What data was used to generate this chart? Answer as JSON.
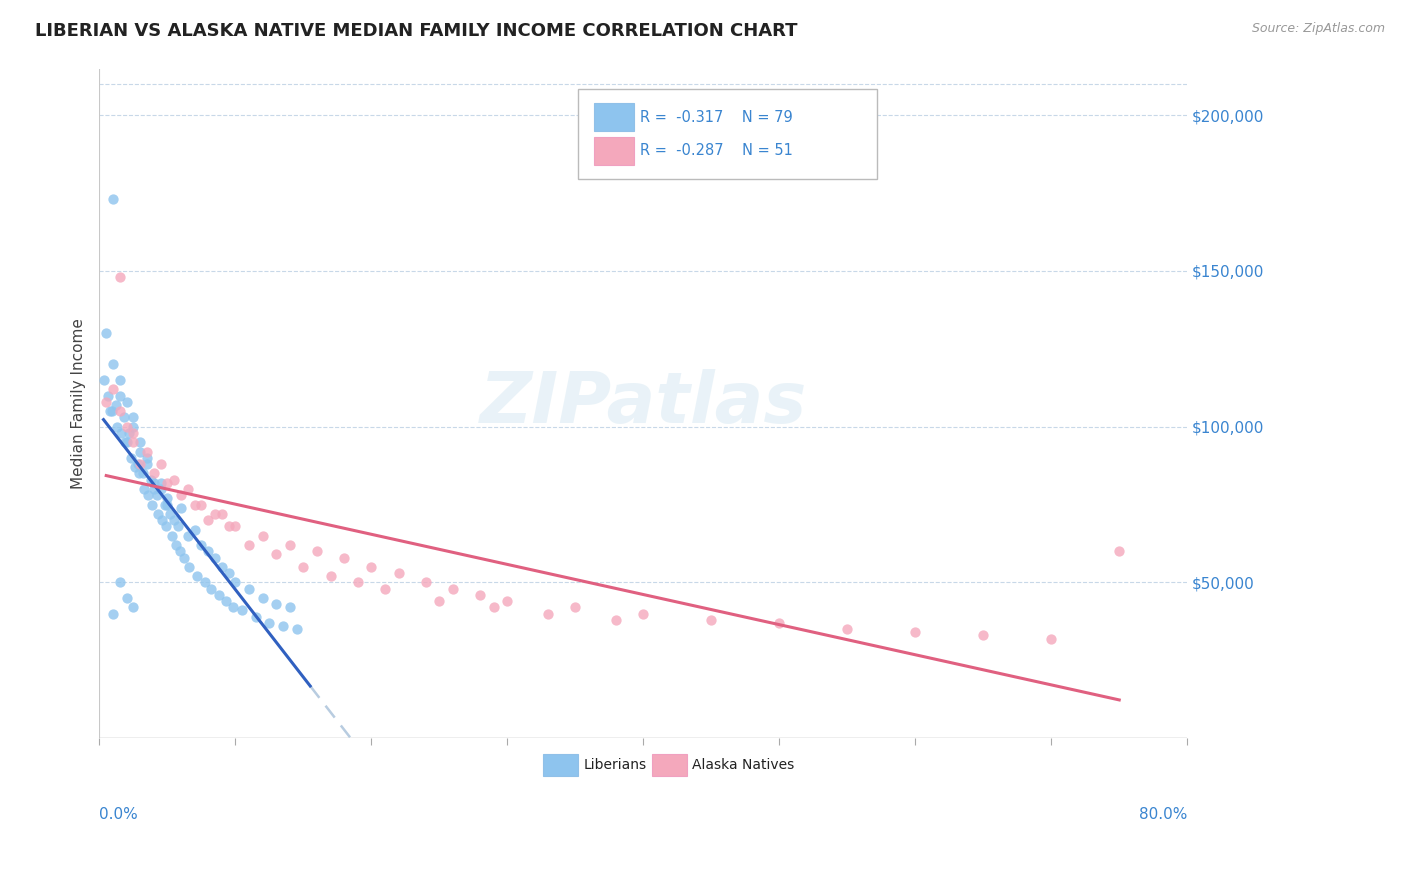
{
  "title": "LIBERIAN VS ALASKA NATIVE MEDIAN FAMILY INCOME CORRELATION CHART",
  "source": "Source: ZipAtlas.com",
  "ylabel": "Median Family Income",
  "legend_label1": "Liberians",
  "legend_label2": "Alaska Natives",
  "ytick_values": [
    50000,
    100000,
    150000,
    200000
  ],
  "xmin": 0.0,
  "xmax": 0.8,
  "ymin": 0,
  "ymax": 215000,
  "blue_color": "#8EC4EE",
  "pink_color": "#F4A8BC",
  "blue_line_color": "#3060C0",
  "pink_line_color": "#E06080",
  "dash_line_color": "#B8CCE0",
  "dot_size": 55,
  "dot_alpha": 0.8,
  "liberians_x": [
    0.003,
    0.005,
    0.006,
    0.008,
    0.009,
    0.01,
    0.01,
    0.012,
    0.013,
    0.015,
    0.015,
    0.016,
    0.018,
    0.019,
    0.02,
    0.02,
    0.022,
    0.023,
    0.025,
    0.025,
    0.026,
    0.028,
    0.029,
    0.03,
    0.03,
    0.032,
    0.033,
    0.035,
    0.035,
    0.036,
    0.038,
    0.039,
    0.04,
    0.04,
    0.042,
    0.043,
    0.045,
    0.045,
    0.046,
    0.048,
    0.049,
    0.05,
    0.05,
    0.052,
    0.053,
    0.055,
    0.056,
    0.058,
    0.059,
    0.06,
    0.062,
    0.065,
    0.066,
    0.07,
    0.072,
    0.075,
    0.078,
    0.08,
    0.082,
    0.085,
    0.088,
    0.09,
    0.093,
    0.095,
    0.098,
    0.1,
    0.105,
    0.11,
    0.115,
    0.12,
    0.125,
    0.13,
    0.135,
    0.14,
    0.145,
    0.015,
    0.02,
    0.025,
    0.01
  ],
  "liberians_y": [
    115000,
    130000,
    110000,
    105000,
    105000,
    173000,
    120000,
    107000,
    100000,
    110000,
    115000,
    98000,
    103000,
    95000,
    95000,
    108000,
    98000,
    90000,
    103000,
    100000,
    87000,
    88000,
    85000,
    92000,
    95000,
    85000,
    80000,
    90000,
    88000,
    78000,
    83000,
    75000,
    80000,
    82000,
    78000,
    72000,
    82000,
    80000,
    70000,
    75000,
    68000,
    77000,
    75000,
    72000,
    65000,
    70000,
    62000,
    68000,
    60000,
    74000,
    58000,
    65000,
    55000,
    67000,
    52000,
    62000,
    50000,
    60000,
    48000,
    58000,
    46000,
    55000,
    44000,
    53000,
    42000,
    50000,
    41000,
    48000,
    39000,
    45000,
    37000,
    43000,
    36000,
    42000,
    35000,
    50000,
    45000,
    42000,
    40000
  ],
  "alaska_x": [
    0.005,
    0.01,
    0.015,
    0.02,
    0.025,
    0.03,
    0.04,
    0.05,
    0.06,
    0.07,
    0.08,
    0.09,
    0.1,
    0.12,
    0.14,
    0.16,
    0.18,
    0.2,
    0.22,
    0.24,
    0.26,
    0.28,
    0.3,
    0.35,
    0.4,
    0.45,
    0.5,
    0.55,
    0.6,
    0.65,
    0.7,
    0.75,
    0.015,
    0.025,
    0.035,
    0.045,
    0.055,
    0.065,
    0.075,
    0.085,
    0.095,
    0.11,
    0.13,
    0.15,
    0.17,
    0.19,
    0.21,
    0.25,
    0.29,
    0.33,
    0.38
  ],
  "alaska_y": [
    108000,
    112000,
    148000,
    100000,
    95000,
    88000,
    85000,
    82000,
    78000,
    75000,
    70000,
    72000,
    68000,
    65000,
    62000,
    60000,
    58000,
    55000,
    53000,
    50000,
    48000,
    46000,
    44000,
    42000,
    40000,
    38000,
    37000,
    35000,
    34000,
    33000,
    32000,
    60000,
    105000,
    98000,
    92000,
    88000,
    83000,
    80000,
    75000,
    72000,
    68000,
    62000,
    59000,
    55000,
    52000,
    50000,
    48000,
    44000,
    42000,
    40000,
    38000
  ]
}
